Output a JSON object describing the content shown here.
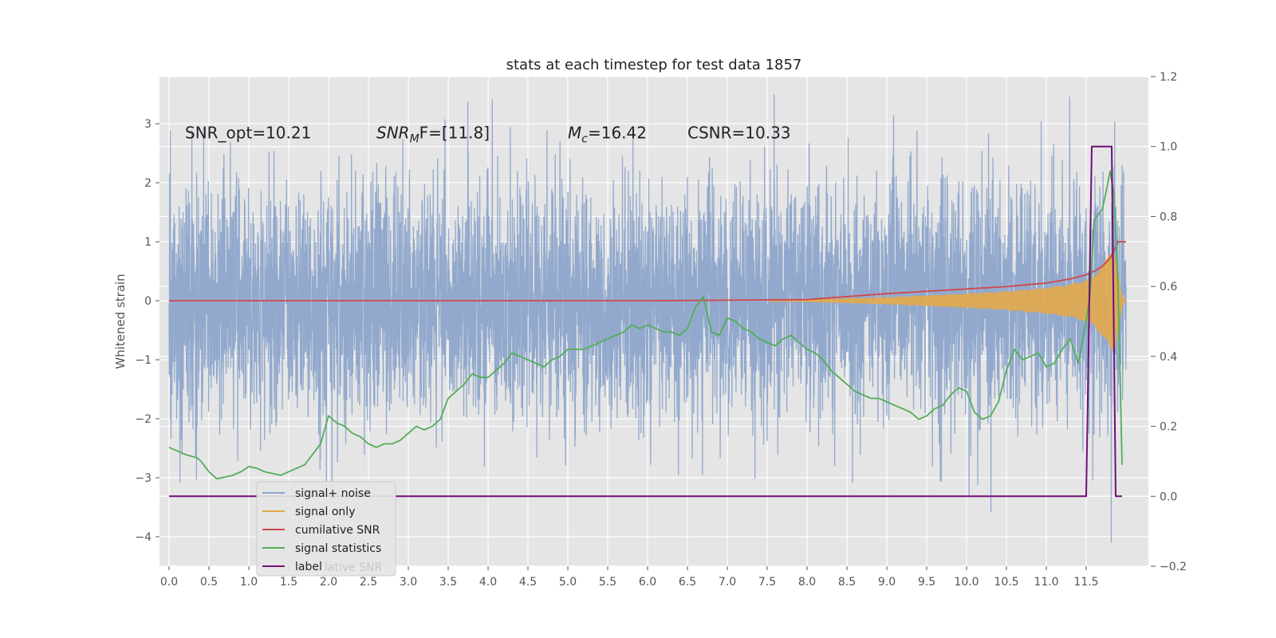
{
  "chart_data": {
    "type": "line",
    "title": "stats at each timestep for test data 1857",
    "ylabel": "Whitened strain",
    "xlabel": "",
    "xlim": [
      -0.12,
      12.28
    ],
    "ylim": [
      -4.5,
      3.8
    ],
    "y2lim": [
      -0.2,
      1.2
    ],
    "x_ticks": [
      "0.0",
      "0.5",
      "1.0",
      "1.5",
      "2.0",
      "2.5",
      "3.0",
      "3.5",
      "4.0",
      "4.5",
      "5.0",
      "5.5",
      "6.0",
      "6.5",
      "7.0",
      "7.5",
      "8.0",
      "8.5",
      "9.0",
      "9.5",
      "10.0",
      "10.5",
      "11.0",
      "11.5"
    ],
    "y_ticks": [
      "−4",
      "−3",
      "−2",
      "−1",
      "0",
      "1",
      "2",
      "3"
    ],
    "y2_ticks": [
      "−0.2",
      "0.0",
      "0.2",
      "0.4",
      "0.6",
      "0.8",
      "1.0",
      "1.2"
    ],
    "grid": true,
    "legend_position": "lower-left",
    "annotations": [
      {
        "id": "snr_opt",
        "label": "SNR_opt=10.21",
        "x": 0.2,
        "y": 2.75
      },
      {
        "id": "snr_mf",
        "base": "SNR",
        "sub": "M",
        "rest": "F=[11.8]",
        "x": 2.6,
        "y": 2.75
      },
      {
        "id": "mc",
        "base": "M",
        "sub": "c",
        "rest": "=16.42",
        "x": 5.0,
        "y": 2.75
      },
      {
        "id": "csnr",
        "label": "CSNR=10.33",
        "x": 6.5,
        "y": 2.75
      }
    ],
    "series": [
      {
        "name": "signal+ noise",
        "color": "#8da5cb",
        "axis": "left",
        "x_range": [
          0.0,
          12.0
        ],
        "amplitude_std": 1.0,
        "min": -4.1,
        "max": 3.5
      },
      {
        "name": "signal only",
        "color": "#e3a94a",
        "axis": "left",
        "x": [
          7.5,
          8.0,
          8.5,
          9.0,
          9.5,
          10.0,
          10.5,
          11.0,
          11.3,
          11.5,
          11.6,
          11.7,
          11.8,
          11.85,
          11.9,
          11.95,
          12.0
        ],
        "envelope": [
          0.0,
          0.02,
          0.04,
          0.06,
          0.09,
          0.12,
          0.16,
          0.22,
          0.28,
          0.35,
          0.42,
          0.6,
          0.8,
          0.9,
          0.5,
          0.1,
          0.0
        ]
      },
      {
        "name": "cumilative SNR",
        "color": "#d0474a",
        "axis": "left",
        "x": [
          0.0,
          6.0,
          7.0,
          8.0,
          9.0,
          10.0,
          10.5,
          11.0,
          11.3,
          11.5,
          11.6,
          11.7,
          11.8,
          11.85,
          11.9,
          12.0
        ],
        "y": [
          0.0,
          0.0,
          0.01,
          0.02,
          0.12,
          0.2,
          0.24,
          0.3,
          0.37,
          0.44,
          0.5,
          0.58,
          0.72,
          0.85,
          1.0,
          1.0
        ]
      },
      {
        "name": "signal statistics",
        "color": "#52ad5a",
        "axis": "right",
        "x": [
          0.0,
          0.1,
          0.2,
          0.35,
          0.4,
          0.5,
          0.6,
          0.8,
          0.9,
          1.0,
          1.1,
          1.2,
          1.3,
          1.4,
          1.5,
          1.6,
          1.7,
          1.8,
          1.9,
          2.0,
          2.1,
          2.2,
          2.3,
          2.4,
          2.5,
          2.6,
          2.7,
          2.8,
          2.9,
          3.0,
          3.1,
          3.2,
          3.3,
          3.4,
          3.5,
          3.6,
          3.7,
          3.8,
          3.9,
          4.0,
          4.1,
          4.2,
          4.3,
          4.4,
          4.5,
          4.6,
          4.7,
          4.8,
          4.9,
          5.0,
          5.1,
          5.2,
          5.3,
          5.4,
          5.5,
          5.6,
          5.7,
          5.8,
          5.9,
          6.0,
          6.1,
          6.2,
          6.3,
          6.4,
          6.5,
          6.6,
          6.7,
          6.8,
          6.9,
          7.0,
          7.1,
          7.2,
          7.3,
          7.4,
          7.5,
          7.6,
          7.7,
          7.8,
          7.9,
          8.0,
          8.1,
          8.2,
          8.3,
          8.4,
          8.5,
          8.6,
          8.7,
          8.8,
          8.9,
          9.0,
          9.1,
          9.2,
          9.3,
          9.4,
          9.5,
          9.6,
          9.7,
          9.8,
          9.9,
          10.0,
          10.1,
          10.2,
          10.3,
          10.4,
          10.5,
          10.6,
          10.7,
          10.8,
          10.9,
          11.0,
          11.1,
          11.2,
          11.3,
          11.4,
          11.5,
          11.55,
          11.6,
          11.7,
          11.75,
          11.8,
          11.85,
          11.9,
          11.95
        ],
        "y": [
          0.14,
          0.13,
          0.12,
          0.11,
          0.1,
          0.07,
          0.05,
          0.06,
          0.07,
          0.085,
          0.08,
          0.07,
          0.065,
          0.06,
          0.07,
          0.08,
          0.09,
          0.12,
          0.15,
          0.23,
          0.21,
          0.2,
          0.18,
          0.17,
          0.15,
          0.14,
          0.15,
          0.15,
          0.16,
          0.18,
          0.2,
          0.19,
          0.2,
          0.22,
          0.28,
          0.3,
          0.32,
          0.35,
          0.34,
          0.34,
          0.36,
          0.38,
          0.41,
          0.4,
          0.39,
          0.38,
          0.37,
          0.39,
          0.4,
          0.42,
          0.42,
          0.42,
          0.43,
          0.44,
          0.45,
          0.46,
          0.47,
          0.49,
          0.48,
          0.49,
          0.48,
          0.47,
          0.47,
          0.46,
          0.48,
          0.54,
          0.57,
          0.47,
          0.46,
          0.51,
          0.5,
          0.48,
          0.47,
          0.45,
          0.44,
          0.43,
          0.45,
          0.46,
          0.44,
          0.42,
          0.41,
          0.39,
          0.36,
          0.34,
          0.32,
          0.3,
          0.29,
          0.28,
          0.28,
          0.27,
          0.26,
          0.25,
          0.24,
          0.22,
          0.23,
          0.25,
          0.26,
          0.29,
          0.31,
          0.3,
          0.24,
          0.22,
          0.23,
          0.27,
          0.36,
          0.42,
          0.39,
          0.4,
          0.41,
          0.37,
          0.38,
          0.42,
          0.45,
          0.38,
          0.5,
          0.58,
          0.79,
          0.82,
          0.87,
          0.93,
          0.86,
          0.6,
          0.09
        ]
      },
      {
        "name": "label",
        "color": "#6f0f78",
        "axis": "right",
        "x": [
          0.0,
          11.5,
          11.57,
          11.62,
          11.82,
          11.87,
          11.95
        ],
        "y": [
          0.0,
          0.0,
          1.0,
          1.0,
          1.0,
          0.0,
          0.0
        ]
      }
    ],
    "legend_ghost_text": "lative SNR"
  }
}
